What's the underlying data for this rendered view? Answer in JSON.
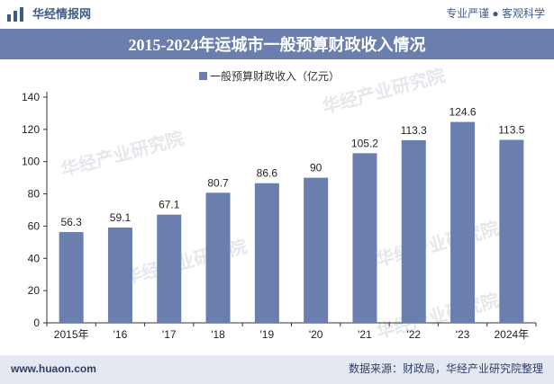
{
  "header": {
    "site_name": "华经情报网",
    "slogan": "专业严谨 ● 客观科学"
  },
  "chart_data": {
    "type": "bar",
    "title": "2015-2024年运城市一般预算财政收入情况",
    "categories": [
      "2015年",
      "'16",
      "'17",
      "'18",
      "'19",
      "'20",
      "'21",
      "'22",
      "'23",
      "2024年"
    ],
    "series": [
      {
        "name": "一般预算财政收入（亿元）",
        "values": [
          56.3,
          59.1,
          67.1,
          80.7,
          86.6,
          90,
          105.2,
          113.3,
          124.6,
          113.5
        ],
        "labels": [
          "56.3",
          "59.1",
          "67.1",
          "80.7",
          "86.6",
          "90",
          "105.2",
          "113.3",
          "124.6",
          "113.5"
        ]
      }
    ],
    "y_ticks": [
      "0",
      "20",
      "40",
      "60",
      "80",
      "100",
      "120",
      "140"
    ],
    "ylim": [
      0,
      140
    ],
    "xlabel": "",
    "ylabel": "",
    "legend_position": "top-center",
    "grid": false,
    "colors": {
      "bar": "#6a7fad",
      "axis": "#333333"
    }
  },
  "watermark": {
    "text": "华经产业研究院",
    "url": "www.huaon.com"
  },
  "footer": {
    "website": "www.huaon.com",
    "source": "数据来源：财政局，华经产业研究院整理"
  }
}
